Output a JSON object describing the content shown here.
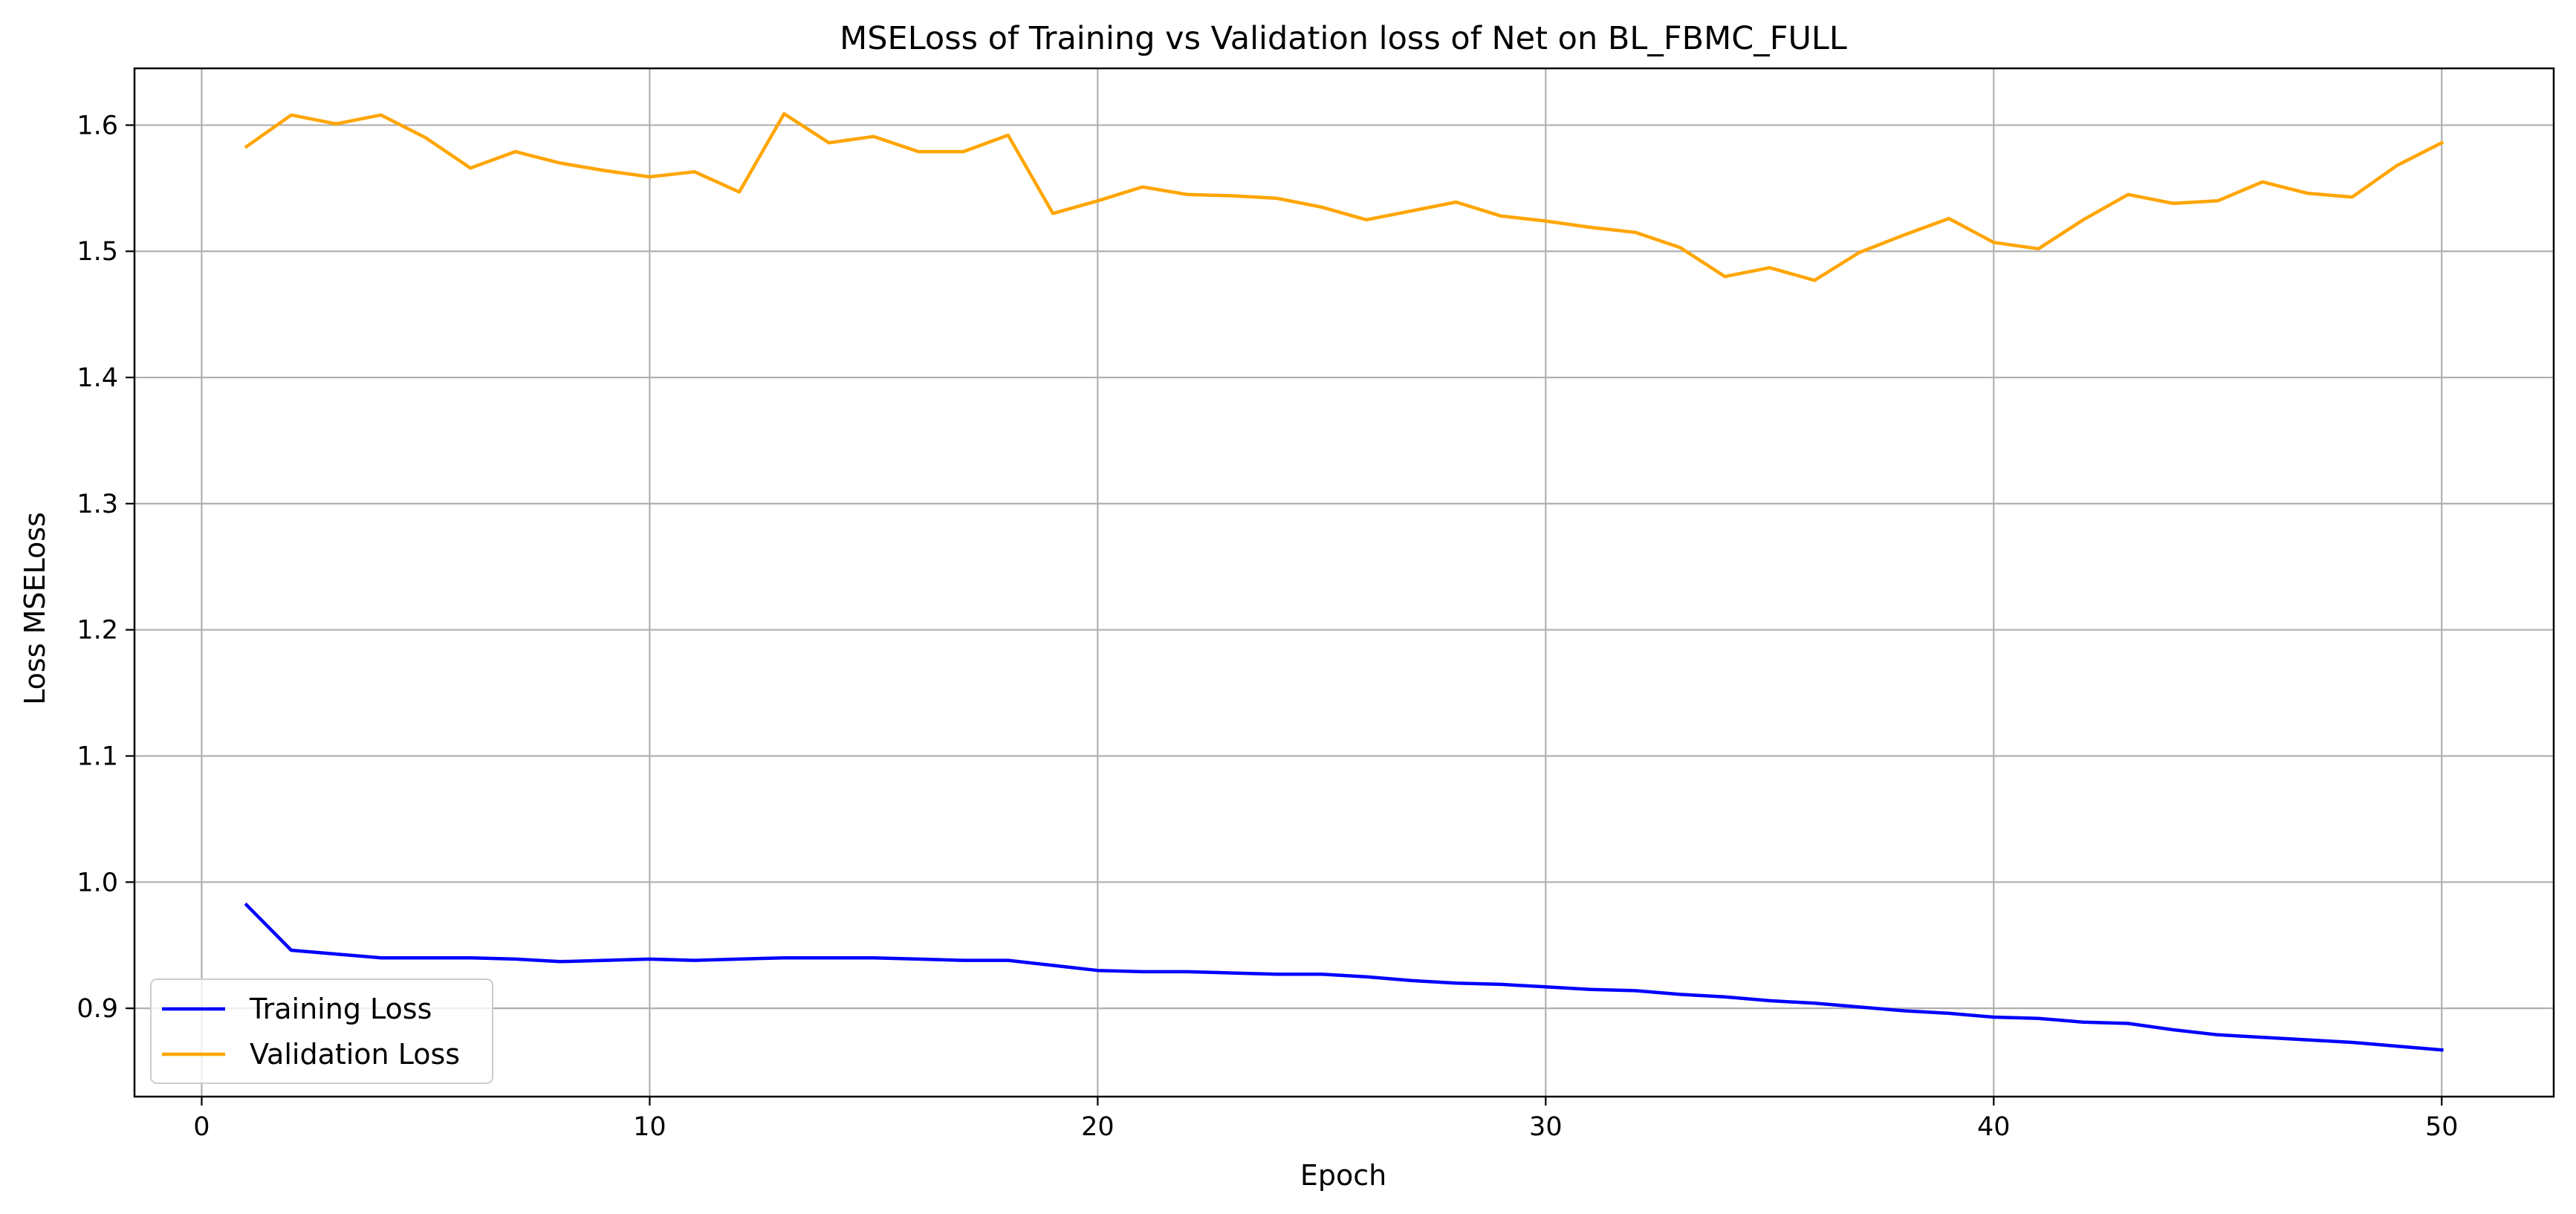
{
  "chart_data": {
    "type": "line",
    "title": "MSELoss of Training vs Validation loss of Net on BL_FBMC_FULL",
    "xlabel": "Epoch",
    "ylabel": "Loss MSELoss",
    "xlim": [
      -1.5,
      52.5
    ],
    "ylim": [
      0.83,
      1.645
    ],
    "xticks": [
      0,
      10,
      20,
      30,
      40,
      50
    ],
    "yticks": [
      0.9,
      1.0,
      1.1,
      1.2,
      1.3,
      1.4,
      1.5,
      1.6
    ],
    "xtick_labels": [
      "0",
      "10",
      "20",
      "30",
      "40",
      "50"
    ],
    "ytick_labels": [
      "0.9",
      "1.0",
      "1.1",
      "1.2",
      "1.3",
      "1.4",
      "1.5",
      "1.6"
    ],
    "grid": true,
    "legend_position": "lower-left",
    "x": [
      1,
      2,
      3,
      4,
      5,
      6,
      7,
      8,
      9,
      10,
      11,
      12,
      13,
      14,
      15,
      16,
      17,
      18,
      19,
      20,
      21,
      22,
      23,
      24,
      25,
      26,
      27,
      28,
      29,
      30,
      31,
      32,
      33,
      34,
      35,
      36,
      37,
      38,
      39,
      40,
      41,
      42,
      43,
      44,
      45,
      46,
      47,
      48,
      49,
      50
    ],
    "series": [
      {
        "name": "Training Loss",
        "color": "#0000ff",
        "values": [
          0.982,
          0.946,
          0.943,
          0.94,
          0.94,
          0.94,
          0.939,
          0.937,
          0.938,
          0.939,
          0.938,
          0.939,
          0.94,
          0.94,
          0.94,
          0.939,
          0.938,
          0.938,
          0.934,
          0.93,
          0.929,
          0.929,
          0.928,
          0.927,
          0.927,
          0.925,
          0.922,
          0.92,
          0.919,
          0.917,
          0.915,
          0.914,
          0.911,
          0.909,
          0.906,
          0.904,
          0.901,
          0.898,
          0.896,
          0.893,
          0.892,
          0.889,
          0.888,
          0.883,
          0.879,
          0.877,
          0.875,
          0.873,
          0.87,
          0.867
        ]
      },
      {
        "name": "Validation Loss",
        "color": "#ffa500",
        "values": [
          1.583,
          1.608,
          1.601,
          1.608,
          1.59,
          1.566,
          1.579,
          1.57,
          1.564,
          1.559,
          1.563,
          1.547,
          1.609,
          1.586,
          1.591,
          1.579,
          1.579,
          1.592,
          1.53,
          1.54,
          1.551,
          1.545,
          1.544,
          1.542,
          1.535,
          1.525,
          1.532,
          1.539,
          1.528,
          1.524,
          1.519,
          1.515,
          1.503,
          1.48,
          1.487,
          1.477,
          1.499,
          1.513,
          1.526,
          1.507,
          1.502,
          1.525,
          1.545,
          1.538,
          1.54,
          1.555,
          1.546,
          1.543,
          1.568,
          1.586
        ]
      }
    ]
  }
}
